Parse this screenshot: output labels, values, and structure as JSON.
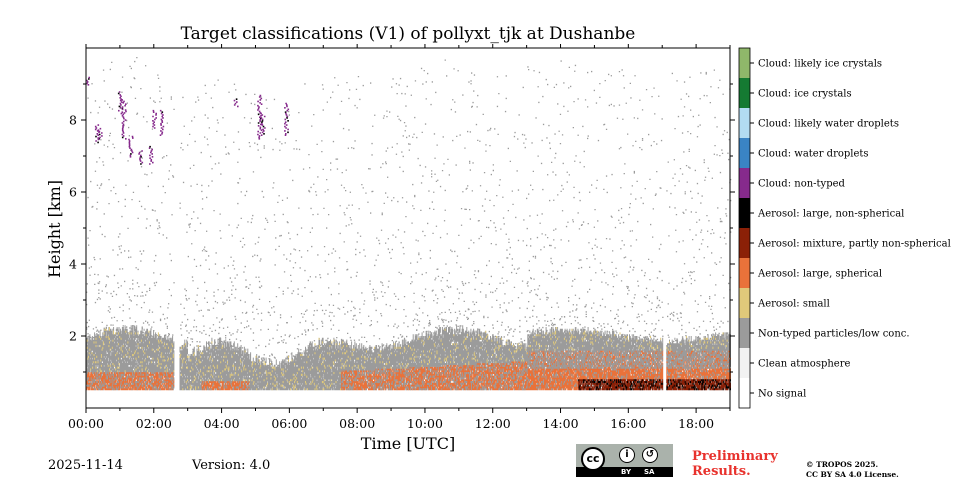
{
  "chart_data": {
    "type": "heatmap",
    "title": "Target classifications (V1) of pollyxt_tjk at Dushanbe",
    "xlabel": "Time [UTC]",
    "ylabel": "Height [km]",
    "xlim": [
      0,
      19
    ],
    "ylim": [
      0,
      10
    ],
    "x_tick_values": [
      0,
      2,
      4,
      6,
      8,
      10,
      12,
      14,
      16,
      18
    ],
    "x_tick_labels": [
      "00:00",
      "02:00",
      "04:00",
      "06:00",
      "08:00",
      "10:00",
      "12:00",
      "14:00",
      "16:00",
      "18:00"
    ],
    "y_tick_values": [
      2,
      4,
      6,
      8
    ],
    "y_tick_labels": [
      "2",
      "4",
      "6",
      "8"
    ],
    "data_gaps_hours": [
      [
        2.6,
        2.75
      ],
      [
        17.0,
        17.1
      ]
    ],
    "colorbar": [
      {
        "label": "Cloud: likely ice crystals",
        "color": "#8fb76a"
      },
      {
        "label": "Cloud: ice crystals",
        "color": "#157a32"
      },
      {
        "label": "Cloud: likely water droplets",
        "color": "#b2dcf2"
      },
      {
        "label": "Cloud: water droplets",
        "color": "#3a84c4"
      },
      {
        "label": "Cloud: non-typed",
        "color": "#862a8c"
      },
      {
        "label": "Aerosol: large, non-spherical",
        "color": "#000000"
      },
      {
        "label": "Aerosol: mixture, partly non-spherical",
        "color": "#8b2007"
      },
      {
        "label": "Aerosol: large, spherical",
        "color": "#e9723a"
      },
      {
        "label": "Aerosol: small",
        "color": "#e0c97a"
      },
      {
        "label": "Non-typed particles/low conc.",
        "color": "#9b9b9b"
      },
      {
        "label": "Clean atmosphere",
        "color": "#f2f2f2"
      },
      {
        "label": "No signal",
        "color": "#ffffff"
      }
    ]
  },
  "footer": {
    "date": "2025-11-14",
    "version": "Version: 4.0",
    "license_badge": {
      "cc": "cc",
      "by": "BY",
      "sa": "SA"
    },
    "preliminary": [
      "Preliminary",
      "Results."
    ],
    "copyright": [
      "© TROPOS 2025.",
      "CC BY SA 4.0 License."
    ]
  }
}
